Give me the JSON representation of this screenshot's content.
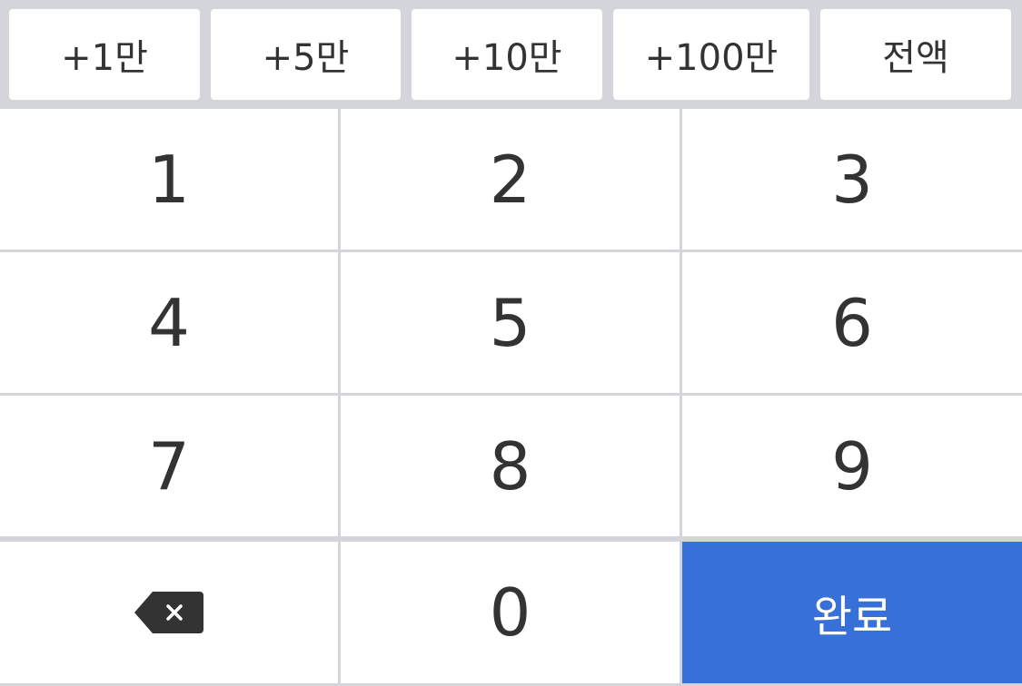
{
  "quick_amounts": [
    {
      "label": "+1만"
    },
    {
      "label": "+5만"
    },
    {
      "label": "+10만"
    },
    {
      "label": "+100만"
    },
    {
      "label": "전액"
    }
  ],
  "keys": {
    "k1": "1",
    "k2": "2",
    "k3": "3",
    "k4": "4",
    "k5": "5",
    "k6": "6",
    "k7": "7",
    "k8": "8",
    "k9": "9",
    "k0": "0",
    "done": "완료",
    "backspace_icon": "backspace-icon"
  },
  "colors": {
    "background": "#d4d5da",
    "key": "#ffffff",
    "text": "#333333",
    "accent": "#3670d8",
    "accent_text": "#ffffff"
  }
}
